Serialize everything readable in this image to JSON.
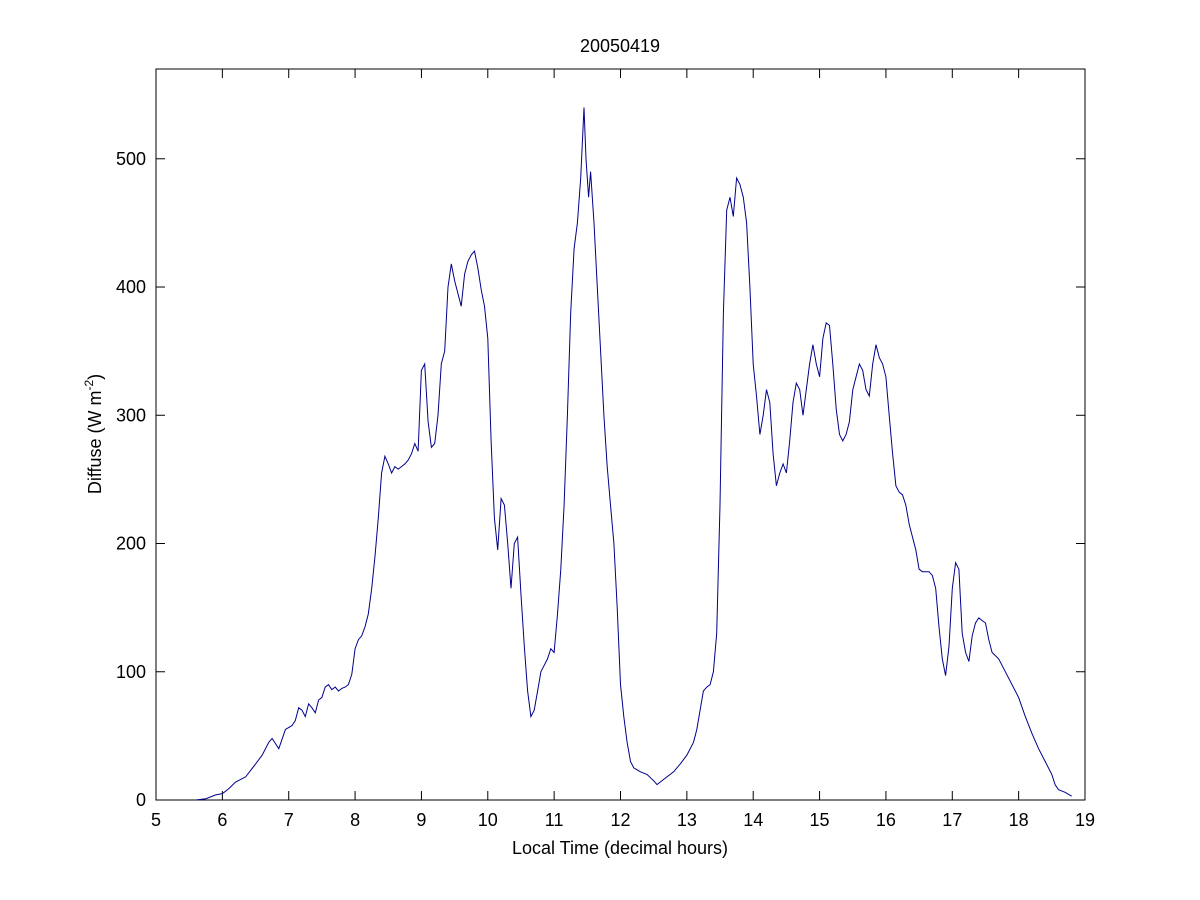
{
  "chart_data": {
    "type": "line",
    "title": "20050419",
    "xlabel": "Local Time (decimal hours)",
    "ylabel": {
      "prefix": "Diffuse (W m",
      "superscript": "-2",
      "suffix": ")"
    },
    "xlim": [
      5,
      19
    ],
    "ylim": [
      0,
      570
    ],
    "xticks": [
      5,
      6,
      7,
      8,
      9,
      10,
      11,
      12,
      13,
      14,
      15,
      16,
      17,
      18,
      19
    ],
    "yticks": [
      0,
      100,
      200,
      300,
      400,
      500
    ],
    "grid": false,
    "line_color": "#00008b",
    "series": [
      {
        "x": [
          5.6,
          5.75,
          5.9,
          6.0,
          6.1,
          6.2,
          6.35,
          6.5,
          6.6,
          6.7,
          6.75,
          6.85,
          6.95,
          7.05,
          7.1,
          7.15,
          7.2,
          7.25,
          7.3,
          7.35,
          7.4,
          7.45,
          7.5,
          7.55,
          7.6,
          7.65,
          7.7,
          7.75,
          7.8,
          7.85,
          7.9,
          7.95,
          8.0,
          8.05,
          8.1,
          8.15,
          8.2,
          8.25,
          8.3,
          8.35,
          8.4,
          8.45,
          8.5,
          8.55,
          8.6,
          8.65,
          8.7,
          8.75,
          8.8,
          8.85,
          8.9,
          8.95,
          9.0,
          9.05,
          9.1,
          9.15,
          9.2,
          9.25,
          9.3,
          9.35,
          9.4,
          9.45,
          9.5,
          9.55,
          9.6,
          9.65,
          9.7,
          9.75,
          9.8,
          9.85,
          9.9,
          9.95,
          10.0,
          10.05,
          10.1,
          10.15,
          10.2,
          10.25,
          10.3,
          10.35,
          10.4,
          10.45,
          10.5,
          10.55,
          10.6,
          10.65,
          10.7,
          10.75,
          10.8,
          10.85,
          10.9,
          10.95,
          11.0,
          11.05,
          11.1,
          11.15,
          11.2,
          11.25,
          11.3,
          11.35,
          11.4,
          11.45,
          11.48,
          11.52,
          11.55,
          11.6,
          11.65,
          11.7,
          11.75,
          11.8,
          11.85,
          11.9,
          11.95,
          12.0,
          12.05,
          12.1,
          12.15,
          12.2,
          12.3,
          12.4,
          12.5,
          12.55,
          12.6,
          12.7,
          12.8,
          12.9,
          13.0,
          13.1,
          13.15,
          13.2,
          13.25,
          13.3,
          13.35,
          13.4,
          13.45,
          13.5,
          13.55,
          13.6,
          13.65,
          13.7,
          13.75,
          13.8,
          13.85,
          13.9,
          13.95,
          14.0,
          14.05,
          14.1,
          14.15,
          14.2,
          14.25,
          14.3,
          14.35,
          14.4,
          14.45,
          14.5,
          14.55,
          14.6,
          14.65,
          14.7,
          14.75,
          14.8,
          14.85,
          14.9,
          14.95,
          15.0,
          15.05,
          15.1,
          15.15,
          15.2,
          15.25,
          15.3,
          15.35,
          15.4,
          15.45,
          15.5,
          15.55,
          15.6,
          15.65,
          15.7,
          15.75,
          15.8,
          15.85,
          15.9,
          15.95,
          16.0,
          16.05,
          16.1,
          16.15,
          16.2,
          16.25,
          16.3,
          16.35,
          16.4,
          16.45,
          16.5,
          16.55,
          16.6,
          16.65,
          16.7,
          16.75,
          16.8,
          16.85,
          16.9,
          16.95,
          17.0,
          17.05,
          17.1,
          17.15,
          17.2,
          17.25,
          17.3,
          17.35,
          17.4,
          17.45,
          17.5,
          17.55,
          17.6,
          17.7,
          17.8,
          17.9,
          18.0,
          18.1,
          18.2,
          18.3,
          18.4,
          18.5,
          18.55,
          18.6,
          18.7,
          18.8
        ],
        "y": [
          0,
          1,
          4,
          5,
          9,
          14,
          18,
          28,
          35,
          45,
          48,
          40,
          55,
          58,
          62,
          72,
          70,
          65,
          75,
          72,
          68,
          78,
          80,
          88,
          90,
          86,
          88,
          85,
          87,
          88,
          90,
          98,
          118,
          125,
          128,
          135,
          145,
          165,
          190,
          220,
          255,
          268,
          262,
          255,
          260,
          258,
          260,
          262,
          265,
          270,
          278,
          272,
          335,
          340,
          295,
          275,
          278,
          300,
          340,
          350,
          400,
          418,
          405,
          395,
          385,
          410,
          420,
          425,
          428,
          415,
          398,
          385,
          360,
          280,
          220,
          195,
          235,
          230,
          200,
          165,
          200,
          205,
          160,
          120,
          85,
          65,
          70,
          85,
          100,
          105,
          110,
          118,
          115,
          145,
          180,
          230,
          300,
          380,
          430,
          450,
          485,
          540,
          500,
          470,
          490,
          450,
          400,
          350,
          300,
          260,
          230,
          200,
          150,
          90,
          65,
          45,
          30,
          25,
          22,
          20,
          15,
          12,
          14,
          18,
          22,
          28,
          35,
          45,
          55,
          70,
          85,
          88,
          90,
          100,
          130,
          230,
          380,
          460,
          470,
          455,
          485,
          480,
          470,
          450,
          400,
          340,
          315,
          285,
          300,
          320,
          310,
          270,
          245,
          255,
          262,
          255,
          280,
          310,
          325,
          320,
          300,
          320,
          340,
          355,
          340,
          330,
          360,
          372,
          370,
          340,
          305,
          285,
          280,
          285,
          295,
          320,
          330,
          340,
          335,
          320,
          315,
          340,
          355,
          345,
          340,
          330,
          300,
          270,
          245,
          240,
          238,
          230,
          215,
          205,
          195,
          180,
          178,
          178,
          178,
          175,
          165,
          135,
          110,
          97,
          120,
          165,
          185,
          180,
          130,
          115,
          108,
          128,
          138,
          142,
          140,
          138,
          125,
          115,
          110,
          100,
          90,
          80,
          65,
          52,
          40,
          30,
          20,
          12,
          8,
          6,
          3
        ]
      }
    ]
  }
}
